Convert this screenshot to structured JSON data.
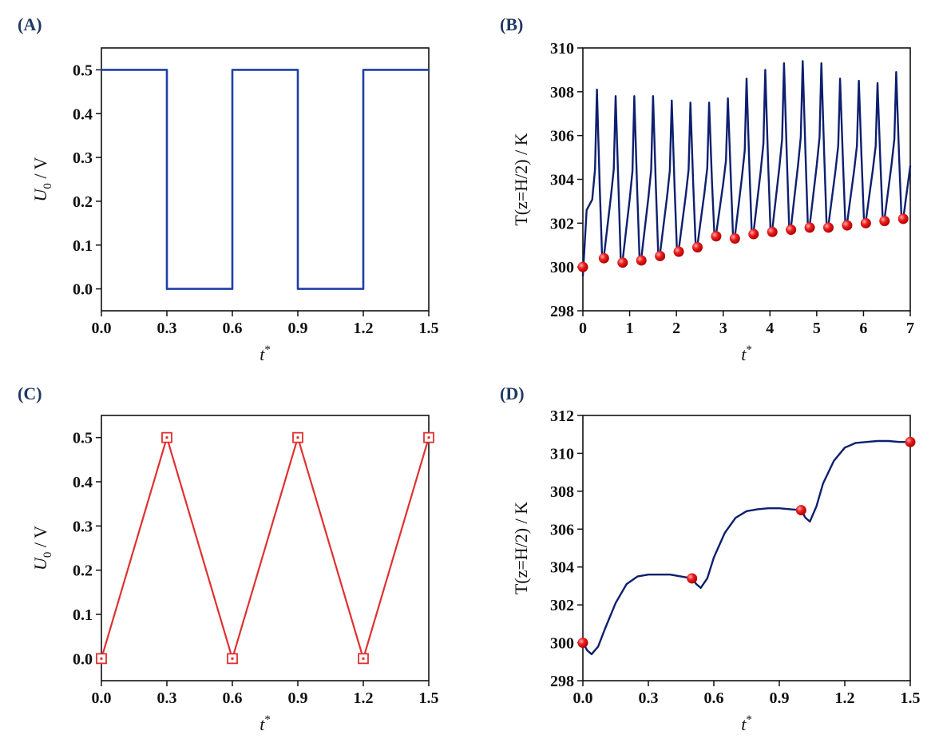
{
  "figure": {
    "panels": [
      "(A)",
      "(B)",
      "(C)",
      "(D)"
    ]
  },
  "chart_data": [
    {
      "panel": "(A)",
      "type": "line",
      "xlabel_main": "t",
      "xlabel_sup": "*",
      "ylabel_main": "U",
      "ylabel_sub": "0",
      "ylabel_unit": " / V",
      "xlim": [
        0,
        1.5
      ],
      "ylim": [
        -0.05,
        0.55
      ],
      "xticks": [
        0,
        0.3,
        0.6,
        0.9,
        1.2,
        1.5
      ],
      "xtick_labels": [
        "0.0",
        "0.3",
        "0.6",
        "0.9",
        "1.2",
        "1.5"
      ],
      "yticks": [
        0,
        0.1,
        0.2,
        0.3,
        0.4,
        0.5
      ],
      "ytick_labels": [
        "0.0",
        "0.1",
        "0.2",
        "0.3",
        "0.4",
        "0.5"
      ],
      "series": [
        {
          "name": "square wave",
          "color": "#1f3fa8",
          "x": [
            0,
            0.3,
            0.3,
            0.6,
            0.6,
            0.9,
            0.9,
            1.2,
            1.2,
            1.5
          ],
          "y": [
            0.5,
            0.5,
            0,
            0,
            0.5,
            0.5,
            0,
            0,
            0.5,
            0.5
          ]
        }
      ]
    },
    {
      "panel": "(B)",
      "type": "line",
      "xlabel_main": "t",
      "xlabel_sup": "*",
      "ylabel_main": "T(z=H/2) / K",
      "xlim": [
        0,
        7
      ],
      "ylim": [
        298,
        310
      ],
      "xticks": [
        0,
        1,
        2,
        3,
        4,
        5,
        6,
        7
      ],
      "xtick_labels": [
        "0",
        "1",
        "2",
        "3",
        "4",
        "5",
        "6",
        "7"
      ],
      "yticks": [
        298,
        300,
        302,
        304,
        306,
        308,
        310
      ],
      "ytick_labels": [
        "298",
        "300",
        "302",
        "304",
        "306",
        "308",
        "310"
      ],
      "line_color": "#0d1f6e",
      "marker_color": "#e02020",
      "oscillation": {
        "period": 0.4,
        "peak_offset": 0.3,
        "trough_offset": 0.45,
        "peaks": [
          308.1,
          307.8,
          307.8,
          307.8,
          307.6,
          307.5,
          307.5,
          307.7,
          308.6,
          309.0,
          309.3,
          309.4,
          309.3,
          308.6,
          308.5,
          308.4,
          308.9
        ],
        "troughs": [
          300.0,
          300.4,
          300.2,
          300.3,
          300.5,
          300.7,
          300.9,
          301.4,
          301.3,
          301.5,
          301.6,
          301.7,
          301.8,
          301.8,
          301.9,
          302.0,
          302.1,
          302.2
        ]
      },
      "markers_x": [
        0.0,
        0.45,
        0.85,
        1.25,
        1.65,
        2.05,
        2.45,
        2.85,
        3.25,
        3.65,
        4.05,
        4.45,
        4.85,
        5.25,
        5.65,
        6.05,
        6.45,
        6.85
      ],
      "markers_y": [
        300.0,
        300.4,
        300.2,
        300.3,
        300.5,
        300.7,
        300.9,
        301.4,
        301.3,
        301.5,
        301.6,
        301.7,
        301.8,
        301.8,
        301.9,
        302.0,
        302.1,
        302.2
      ]
    },
    {
      "panel": "(C)",
      "type": "line",
      "xlabel_main": "t",
      "xlabel_sup": "*",
      "ylabel_main": "U",
      "ylabel_sub": "0",
      "ylabel_unit": " / V",
      "xlim": [
        0,
        1.5
      ],
      "ylim": [
        -0.05,
        0.55
      ],
      "xticks": [
        0,
        0.3,
        0.6,
        0.9,
        1.2,
        1.5
      ],
      "xtick_labels": [
        "0.0",
        "0.3",
        "0.6",
        "0.9",
        "1.2",
        "1.5"
      ],
      "yticks": [
        0,
        0.1,
        0.2,
        0.3,
        0.4,
        0.5
      ],
      "ytick_labels": [
        "0.0",
        "0.1",
        "0.2",
        "0.3",
        "0.4",
        "0.5"
      ],
      "series": [
        {
          "name": "triangle wave",
          "color": "#e03030",
          "marker": "square",
          "x": [
            0,
            0.3,
            0.6,
            0.9,
            1.2,
            1.5
          ],
          "y": [
            0,
            0.5,
            0,
            0.5,
            0,
            0.5
          ]
        }
      ]
    },
    {
      "panel": "(D)",
      "type": "line",
      "xlabel_main": "t",
      "xlabel_sup": "*",
      "ylabel_main": "T(z=H/2) / K",
      "xlim": [
        0,
        1.5
      ],
      "ylim": [
        298,
        312
      ],
      "xticks": [
        0,
        0.3,
        0.6,
        0.9,
        1.2,
        1.5
      ],
      "xtick_labels": [
        "0.0",
        "0.3",
        "0.6",
        "0.9",
        "1.2",
        "1.5"
      ],
      "yticks": [
        298,
        300,
        302,
        304,
        306,
        308,
        310,
        312
      ],
      "ytick_labels": [
        "298",
        "300",
        "302",
        "304",
        "306",
        "308",
        "310",
        "312"
      ],
      "line_color": "#0d1f6e",
      "marker_color": "#e02020",
      "series": [
        {
          "name": "temperature",
          "x": [
            0,
            0.02,
            0.04,
            0.07,
            0.1,
            0.15,
            0.2,
            0.25,
            0.3,
            0.35,
            0.4,
            0.45,
            0.5,
            0.52,
            0.54,
            0.57,
            0.6,
            0.65,
            0.7,
            0.75,
            0.8,
            0.85,
            0.9,
            0.95,
            1.0,
            1.02,
            1.04,
            1.07,
            1.1,
            1.15,
            1.2,
            1.25,
            1.3,
            1.35,
            1.4,
            1.45,
            1.5
          ],
          "y": [
            300.0,
            299.6,
            299.4,
            299.8,
            300.7,
            302.1,
            303.1,
            303.5,
            303.6,
            303.6,
            303.6,
            303.5,
            303.4,
            303.1,
            302.9,
            303.4,
            304.5,
            305.8,
            306.6,
            306.95,
            307.05,
            307.1,
            307.1,
            307.05,
            307.0,
            306.6,
            306.4,
            307.2,
            308.4,
            309.6,
            310.3,
            310.55,
            310.6,
            310.65,
            310.65,
            310.6,
            310.6
          ]
        }
      ],
      "markers_x": [
        0.0,
        0.5,
        1.0,
        1.5
      ],
      "markers_y": [
        300.0,
        303.4,
        307.0,
        310.6
      ]
    }
  ]
}
